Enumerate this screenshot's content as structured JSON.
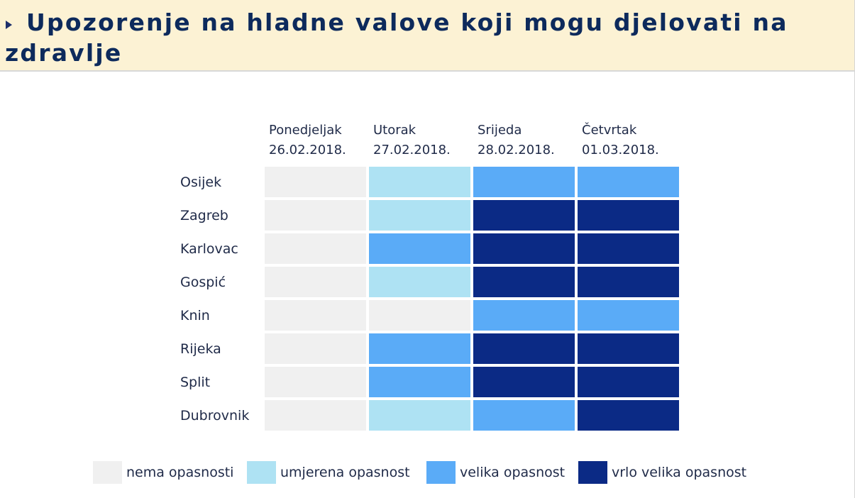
{
  "title": "Upozorenje na hladne valove koji mogu djelovati na zdravlje",
  "icons": {
    "title_bullet": "triangle-bullet-icon"
  },
  "chart_data": {
    "type": "heatmap",
    "columns": [
      {
        "day": "Ponedjeljak",
        "date": "26.02.2018."
      },
      {
        "day": "Utorak",
        "date": "27.02.2018."
      },
      {
        "day": "Srijeda",
        "date": "28.02.2018."
      },
      {
        "day": "Četvrtak",
        "date": "01.03.2018."
      }
    ],
    "rows": [
      "Osijek",
      "Zagreb",
      "Karlovac",
      "Gospić",
      "Knin",
      "Rijeka",
      "Split",
      "Dubrovnik"
    ],
    "values": [
      [
        0,
        1,
        2,
        2
      ],
      [
        0,
        1,
        3,
        3
      ],
      [
        0,
        2,
        3,
        3
      ],
      [
        0,
        1,
        3,
        3
      ],
      [
        0,
        0,
        2,
        2
      ],
      [
        0,
        2,
        3,
        3
      ],
      [
        0,
        2,
        3,
        3
      ],
      [
        0,
        1,
        2,
        3
      ]
    ],
    "levels": [
      {
        "label": "nema opasnosti",
        "color": "#f0f0f0"
      },
      {
        "label": "umjerena opasnost",
        "color": "#aee2f3"
      },
      {
        "label": "velika opasnost",
        "color": "#5aabf7"
      },
      {
        "label": "vrlo velika opasnost",
        "color": "#0b2a85"
      }
    ]
  }
}
